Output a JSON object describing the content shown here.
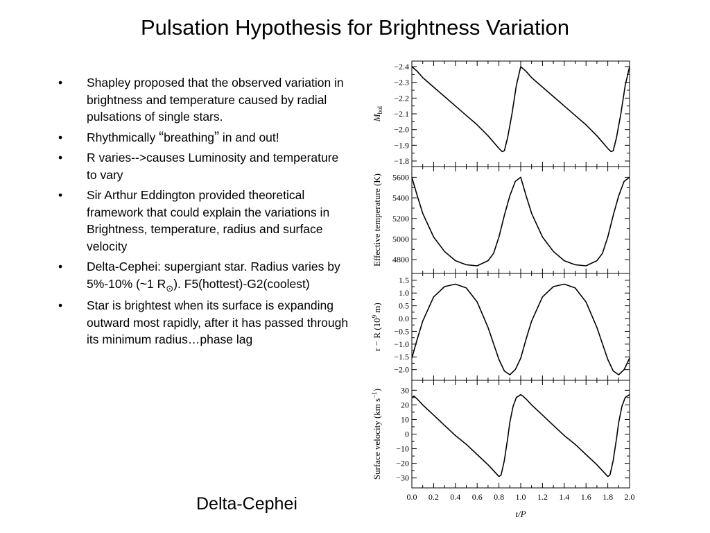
{
  "slide": {
    "title": "Pulsation Hypothesis for Brightness Variation",
    "caption": "Delta-Cephei"
  },
  "bullets": [
    {
      "text": "Shapley proposed that the observed variation in brightness and temperature caused by radial pulsations of single stars."
    },
    {
      "pre": "Rhythmically ",
      "open_quote": "“",
      "word": "breathing",
      "close_quote": "”",
      "post": " in and out!"
    },
    {
      "text": "R varies-->causes Luminosity and temperature to vary"
    },
    {
      "text": "Sir Arthur Eddington provided theoretical framework that could explain the variations in Brightness, temperature, radius and surface velocity"
    },
    {
      "pre": "Delta-Cephei: supergiant star. Radius varies by 5%-10% (~1 R",
      "sun": "⊙",
      "post": "). F5(hottest)-G2(coolest)"
    },
    {
      "text": "Star is brightest when its surface is expanding outward most rapidly, after it has passed through its minimum radius…phase lag"
    }
  ],
  "chart_data": [
    {
      "type": "line",
      "ylabel": "M",
      "ylabel_sub": "bol",
      "ylim": [
        -2.4,
        -1.8
      ],
      "y_inverted": true,
      "yticks": [
        -2.4,
        -2.3,
        -2.2,
        -2.1,
        -2.0,
        -1.9,
        -1.8
      ],
      "ytick_labels": [
        "−2.4",
        "−2.3",
        "−2.2",
        "−2.1",
        "−2.0",
        "−1.9",
        "−1.8"
      ],
      "x": [
        0,
        0.05,
        0.1,
        0.2,
        0.3,
        0.4,
        0.5,
        0.6,
        0.7,
        0.75,
        0.8,
        0.83,
        0.85,
        0.88,
        0.92,
        0.96,
        1.0,
        1.05,
        1.1,
        1.2,
        1.3,
        1.4,
        1.5,
        1.6,
        1.7,
        1.75,
        1.8,
        1.83,
        1.85,
        1.88,
        1.92,
        1.96,
        2.0
      ],
      "y": [
        -2.4,
        -2.37,
        -2.33,
        -2.27,
        -2.21,
        -2.15,
        -2.09,
        -2.03,
        -1.96,
        -1.92,
        -1.88,
        -1.86,
        -1.865,
        -1.95,
        -2.1,
        -2.28,
        -2.4,
        -2.37,
        -2.33,
        -2.27,
        -2.21,
        -2.15,
        -2.09,
        -2.03,
        -1.96,
        -1.92,
        -1.88,
        -1.86,
        -1.865,
        -1.95,
        -2.1,
        -2.28,
        -2.4
      ]
    },
    {
      "type": "line",
      "ylabel": "Effective temperature (K)",
      "ylim": [
        4720,
        5650
      ],
      "yticks": [
        4800,
        5000,
        5200,
        5400,
        5600
      ],
      "ytick_labels": [
        "4800",
        "5000",
        "5200",
        "5400",
        "5600"
      ],
      "x": [
        0,
        0.05,
        0.1,
        0.2,
        0.3,
        0.4,
        0.5,
        0.6,
        0.7,
        0.75,
        0.8,
        0.85,
        0.9,
        0.95,
        1.0,
        1.05,
        1.1,
        1.2,
        1.3,
        1.4,
        1.5,
        1.6,
        1.7,
        1.75,
        1.8,
        1.85,
        1.9,
        1.95,
        2.0
      ],
      "y": [
        5600,
        5420,
        5250,
        5020,
        4880,
        4790,
        4750,
        4740,
        4790,
        4860,
        5020,
        5230,
        5420,
        5560,
        5600,
        5420,
        5250,
        5020,
        4880,
        4790,
        4750,
        4740,
        4790,
        4860,
        5020,
        5230,
        5420,
        5560,
        5600
      ]
    },
    {
      "type": "line",
      "ylabel": "r − R (10",
      "ylabel_sup": "9",
      "ylabel_end": " m)",
      "ylim": [
        -2.2,
        1.55
      ],
      "yticks": [
        -2.0,
        -1.5,
        -1.0,
        -0.5,
        0.0,
        0.5,
        1.0,
        1.5
      ],
      "ytick_labels": [
        "−2.0",
        "−1.5",
        "−1.0",
        "−0.5",
        "0.0",
        "0.5",
        "1.0",
        "1.5"
      ],
      "x": [
        0,
        0.05,
        0.1,
        0.2,
        0.3,
        0.4,
        0.5,
        0.6,
        0.7,
        0.8,
        0.85,
        0.9,
        0.95,
        1.0,
        1.05,
        1.1,
        1.2,
        1.3,
        1.4,
        1.5,
        1.6,
        1.7,
        1.8,
        1.85,
        1.9,
        1.95,
        2.0
      ],
      "y": [
        -1.55,
        -0.8,
        -0.1,
        0.85,
        1.25,
        1.35,
        1.2,
        0.65,
        -0.35,
        -1.6,
        -2.05,
        -2.2,
        -2.0,
        -1.55,
        -0.8,
        -0.1,
        0.85,
        1.25,
        1.35,
        1.2,
        0.65,
        -0.35,
        -1.6,
        -2.05,
        -2.2,
        -2.0,
        -1.55
      ]
    },
    {
      "type": "line",
      "ylabel": "Surface velocity (km s",
      "ylabel_sup": "−1",
      "ylabel_end": ")",
      "ylim": [
        -33,
        33
      ],
      "yticks": [
        -30,
        -20,
        -10,
        0,
        10,
        20,
        30
      ],
      "ytick_labels": [
        "−30",
        "−20",
        "−10",
        "0",
        "10",
        "20",
        "30"
      ],
      "xlabel": "t/P",
      "xlim": [
        0,
        2
      ],
      "xticks": [
        0,
        0.2,
        0.4,
        0.6,
        0.8,
        1.0,
        1.2,
        1.4,
        1.6,
        1.8,
        2.0
      ],
      "xtick_labels": [
        "0.0",
        "0.2",
        "0.4",
        "0.6",
        "0.8",
        "1.0",
        "1.2",
        "1.4",
        "1.6",
        "1.8",
        "2.0"
      ],
      "x": [
        0,
        0.02,
        0.05,
        0.1,
        0.2,
        0.3,
        0.4,
        0.5,
        0.6,
        0.7,
        0.75,
        0.8,
        0.82,
        0.85,
        0.88,
        0.9,
        0.93,
        0.96,
        1.0,
        1.02,
        1.05,
        1.1,
        1.2,
        1.3,
        1.4,
        1.5,
        1.6,
        1.7,
        1.75,
        1.8,
        1.82,
        1.85,
        1.88,
        1.9,
        1.93,
        1.96,
        2.0
      ],
      "y": [
        25,
        26,
        24,
        20,
        13,
        6,
        -1,
        -7,
        -14,
        -21,
        -25,
        -29,
        -28,
        -18,
        -3,
        8,
        19,
        25,
        27,
        26,
        24,
        20,
        13,
        6,
        -1,
        -7,
        -14,
        -21,
        -25,
        -29,
        -28,
        -18,
        -3,
        8,
        19,
        25,
        27
      ]
    }
  ]
}
